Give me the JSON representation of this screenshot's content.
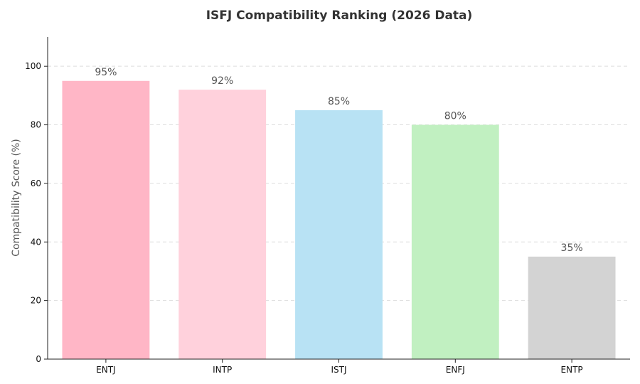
{
  "chart_data": {
    "type": "bar",
    "title": "ISFJ Compatibility Ranking (2026 Data)",
    "xlabel": "",
    "ylabel": "Compatibility Score (%)",
    "categories": [
      "ENTJ",
      "INTP",
      "ISTJ",
      "ENFJ",
      "ENTP"
    ],
    "values": [
      95,
      92,
      85,
      80,
      35
    ],
    "data_labels": [
      "95%",
      "92%",
      "85%",
      "80%",
      "35%"
    ],
    "colors": [
      "#ffb6c6",
      "#ffd1dc",
      "#b8e2f4",
      "#c1f0c1",
      "#d3d3d3"
    ],
    "ylim": [
      0,
      110
    ],
    "yticks": [
      0,
      20,
      40,
      60,
      80,
      100
    ],
    "grid": true,
    "legend": "none"
  }
}
